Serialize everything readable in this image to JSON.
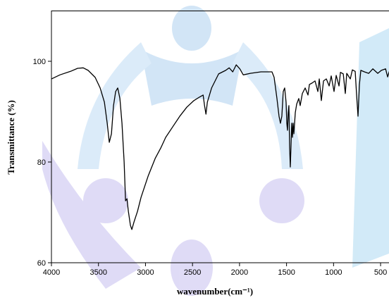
{
  "chart_data": {
    "type": "line",
    "xlabel": "wavenumber(cm⁻¹)",
    "ylabel": "Transmittance (%)",
    "xlim": [
      4000,
      400
    ],
    "ylim": [
      60,
      110
    ],
    "xticks": [
      4000,
      3500,
      3000,
      2500,
      2000,
      1500,
      1000,
      500
    ],
    "yticks": [
      60,
      80,
      100
    ],
    "series": [
      {
        "color": "#000000",
        "x": [
          4000,
          3910,
          3797,
          3722,
          3662,
          3610,
          3535,
          3482,
          3437,
          3407,
          3385,
          3362,
          3340,
          3317,
          3295,
          3272,
          3250,
          3227,
          3212,
          3197,
          3182,
          3160,
          3145,
          3122,
          3085,
          3047,
          2972,
          2897,
          2837,
          2785,
          2710,
          2635,
          2560,
          2485,
          2425,
          2387,
          2372,
          2357,
          2342,
          2297,
          2222,
          2147,
          2110,
          2072,
          2035,
          1997,
          1960,
          1885,
          1772,
          1655,
          1632,
          1602,
          1580,
          1565,
          1550,
          1535,
          1520,
          1505,
          1497,
          1490,
          1482,
          1475,
          1467,
          1460,
          1452,
          1445,
          1437,
          1430,
          1422,
          1407,
          1392,
          1370,
          1355,
          1332,
          1302,
          1272,
          1257,
          1227,
          1197,
          1167,
          1152,
          1130,
          1107,
          1077,
          1047,
          1025,
          995,
          972,
          942,
          927,
          897,
          875,
          860,
          822,
          800,
          770,
          755,
          740,
          725,
          710,
          672,
          627,
          582,
          530,
          492,
          447,
          425,
          402
        ],
        "values": [
          96.5,
          97.3,
          98.0,
          98.6,
          98.7,
          98.2,
          96.8,
          94.7,
          91.9,
          87.7,
          83.9,
          85.6,
          91.2,
          94.0,
          94.7,
          92.6,
          87.7,
          80.0,
          72.3,
          72.7,
          70.2,
          67.4,
          66.6,
          68.1,
          70.2,
          73.0,
          77.2,
          80.7,
          82.8,
          84.9,
          87.0,
          89.1,
          90.9,
          92.2,
          92.9,
          93.3,
          91.2,
          89.5,
          91.9,
          94.7,
          97.5,
          98.2,
          98.7,
          97.9,
          99.3,
          98.5,
          97.3,
          97.6,
          97.9,
          97.9,
          96.8,
          92.6,
          89.1,
          87.7,
          89.1,
          94.0,
          94.7,
          91.9,
          87.7,
          86.3,
          89.8,
          91.2,
          82.8,
          79.0,
          83.5,
          87.7,
          84.9,
          87.7,
          85.6,
          89.8,
          91.5,
          92.6,
          91.2,
          93.6,
          94.7,
          93.3,
          95.4,
          95.7,
          96.1,
          94.0,
          96.5,
          92.2,
          96.1,
          96.5,
          95.1,
          97.1,
          94.0,
          97.2,
          95.1,
          97.8,
          97.5,
          93.6,
          97.6,
          96.5,
          98.3,
          98.0,
          93.3,
          89.1,
          95.4,
          98.2,
          97.9,
          97.6,
          98.5,
          97.6,
          98.2,
          98.5,
          96.9,
          98.3
        ]
      }
    ]
  }
}
